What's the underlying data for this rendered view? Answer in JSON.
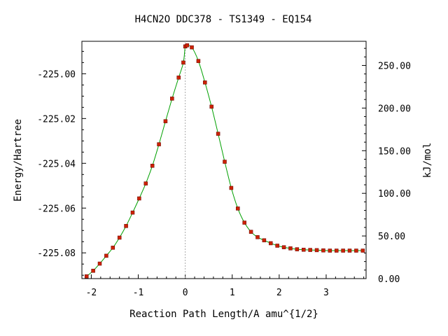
{
  "chart_data": {
    "type": "line",
    "title": "H4CN2O   DDC378 - TS1349 - EQ154",
    "xlabel": "Reaction Path Length/A amu^{1/2}",
    "ylabel": "Energy/Hartree",
    "y2label": "kJ/mol",
    "xlim": [
      -2.2,
      3.85
    ],
    "ylim": [
      -225.0915,
      -224.9855
    ],
    "y2lim": [
      0.0,
      278.3
    ],
    "xticks": [
      -2,
      -1,
      0,
      1,
      2,
      3
    ],
    "xtick_labels": [
      "-2",
      "-1",
      "0",
      "1",
      "2",
      "3"
    ],
    "yticks": [
      -225.0,
      -225.02,
      -225.04,
      -225.06,
      -225.08
    ],
    "ytick_labels": [
      "-225.00",
      "-225.02",
      "-225.04",
      "-225.06",
      "-225.08"
    ],
    "y2ticks": [
      0,
      50,
      100,
      150,
      200,
      250
    ],
    "y2tick_labels": [
      "0.00",
      "50.00",
      "100.00",
      "150.00",
      "200.00",
      "250.00"
    ],
    "ts_marker_x": 0,
    "grid": false,
    "colors": {
      "curve": "#00a000",
      "points": "#cc2200",
      "axis": "#000000",
      "ts_line": "#aaaaaa"
    },
    "series": [
      {
        "x": [
          -2.1,
          -1.96,
          -1.82,
          -1.68,
          -1.54,
          -1.4,
          -1.26,
          -1.12,
          -0.98,
          -0.84,
          -0.7,
          -0.56,
          -0.42,
          -0.28,
          -0.14,
          -0.04,
          0.0,
          0.04,
          0.14,
          0.28,
          0.42,
          0.56,
          0.7,
          0.84,
          0.98,
          1.12,
          1.26,
          1.4,
          1.54,
          1.68,
          1.82,
          1.96,
          2.1,
          2.24,
          2.38,
          2.52,
          2.66,
          2.8,
          2.94,
          3.08,
          3.22,
          3.36,
          3.5,
          3.64,
          3.78
        ],
        "y": [
          -225.0905,
          -225.088,
          -225.0848,
          -225.0813,
          -225.0777,
          -225.0732,
          -225.068,
          -225.062,
          -225.0557,
          -225.049,
          -225.0411,
          -225.0315,
          -225.0212,
          -225.0111,
          -225.0017,
          -224.995,
          -224.9878,
          -224.9873,
          -224.9882,
          -224.9943,
          -225.0039,
          -225.0147,
          -225.0268,
          -225.0393,
          -225.051,
          -225.0602,
          -225.0665,
          -225.0706,
          -225.073,
          -225.0744,
          -225.0757,
          -225.0768,
          -225.0775,
          -225.078,
          -225.0784,
          -225.0786,
          -225.0787,
          -225.0788,
          -225.0789,
          -225.079,
          -225.079,
          -225.079,
          -225.079,
          -225.079,
          -225.079
        ]
      }
    ]
  }
}
